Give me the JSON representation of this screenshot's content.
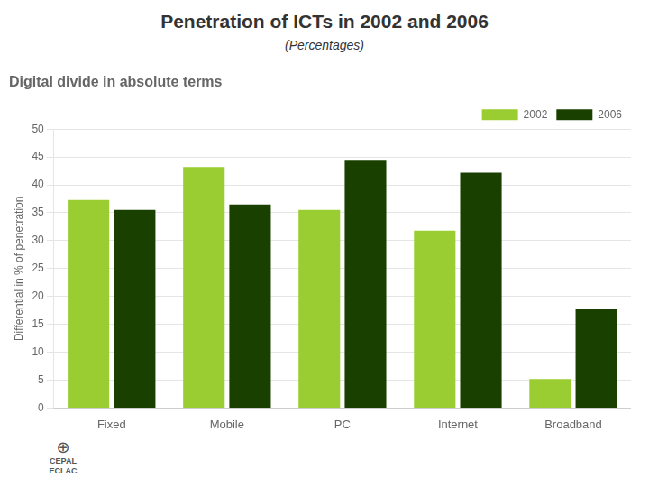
{
  "chart_data": {
    "type": "bar",
    "title": "Penetration of ICTs in 2002 and 2006",
    "subtitle": "(Percentages)",
    "chart_title": "Digital divide in absolute terms",
    "ylabel": "Differential in % of penetration",
    "categories": [
      "Fixed",
      "Mobile",
      "PC",
      "Internet",
      "Broadband"
    ],
    "series": [
      {
        "name": "2002",
        "color": "#9ACD32",
        "values": [
          37.3,
          43.2,
          35.5,
          31.8,
          5.2
        ]
      },
      {
        "name": "2006",
        "color": "#1A4000",
        "values": [
          35.5,
          36.5,
          44.5,
          42.2,
          17.7
        ]
      }
    ],
    "ylim": [
      0,
      50
    ],
    "yticks": [
      0,
      5,
      10,
      15,
      20,
      25,
      30,
      35,
      40,
      45,
      50
    ],
    "grid": true,
    "legend": "upper right",
    "annotations": [
      "⊕",
      "CEPAL\nECLAC"
    ]
  }
}
